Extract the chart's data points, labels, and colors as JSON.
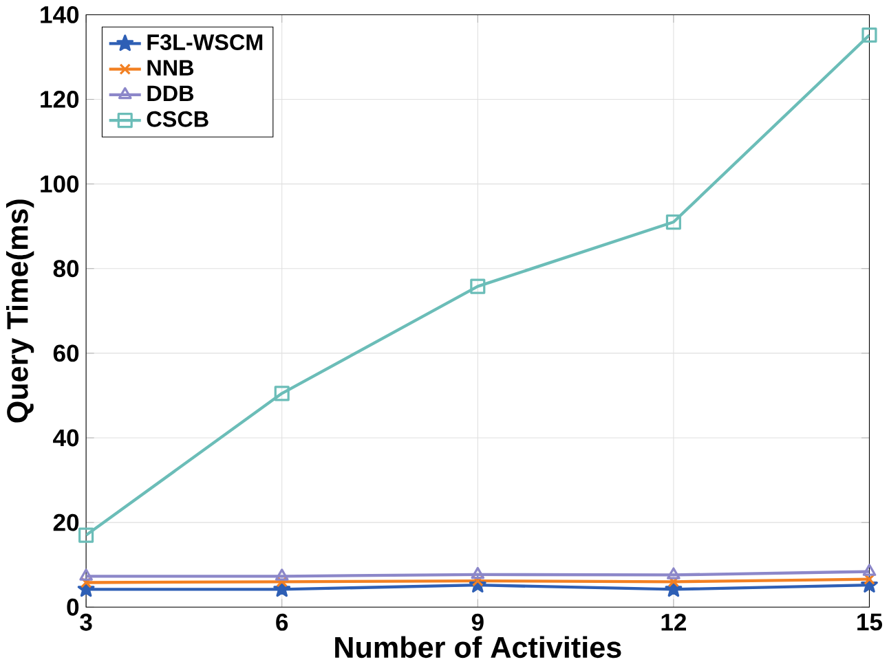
{
  "chart_data": {
    "type": "line",
    "xlabel": "Number of Activities",
    "ylabel": "Query Time(ms)",
    "x": [
      3,
      6,
      9,
      12,
      15
    ],
    "series": [
      {
        "name": "F3L-WSCM",
        "color": "#2e5fb5",
        "marker": "star",
        "values": [
          4.2,
          4.2,
          5.2,
          4.2,
          5.2
        ]
      },
      {
        "name": "NNB",
        "color": "#f28022",
        "marker": "cross",
        "values": [
          5.8,
          6.0,
          6.2,
          6.0,
          6.6
        ]
      },
      {
        "name": "DDB",
        "color": "#8c87c9",
        "marker": "triangle",
        "values": [
          7.3,
          7.3,
          7.7,
          7.6,
          8.4
        ]
      },
      {
        "name": "CSCB",
        "color": "#6bbdb8",
        "marker": "square",
        "values": [
          17,
          50.5,
          75.8,
          91,
          135.2
        ]
      }
    ],
    "xlim": [
      3,
      15
    ],
    "xticks": [
      3,
      6,
      9,
      12,
      15
    ],
    "ylim": [
      0,
      140
    ],
    "yticks": [
      0,
      20,
      40,
      60,
      80,
      100,
      120,
      140
    ],
    "grid": true,
    "legend": "top left",
    "line_style": "solid"
  }
}
